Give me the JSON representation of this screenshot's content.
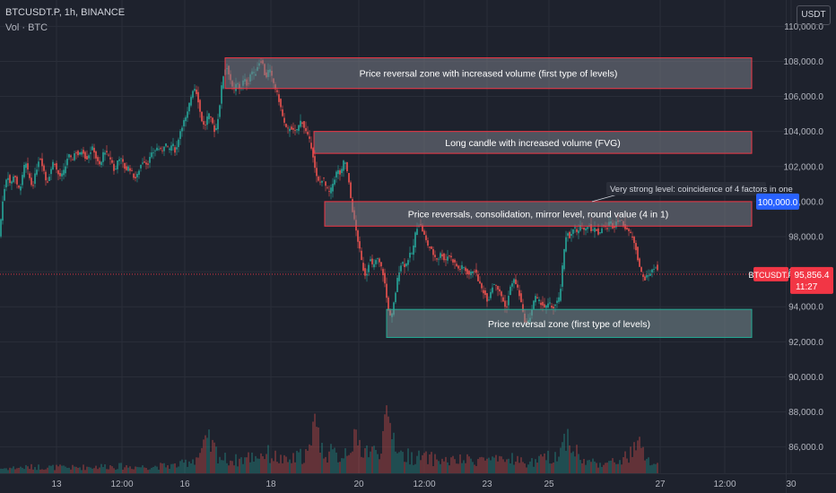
{
  "header": {
    "symbol_line": "BTCUSDT.P, 1h, BINANCE",
    "volume_line": "Vol · BTC",
    "currency": "USDT"
  },
  "colors": {
    "background": "#1e222d",
    "up": "#26a69a",
    "down": "#ef5350",
    "zone_fill": "rgba(120,123,134,0.55)",
    "zone_border": "#f23645",
    "green_zone_border": "#22ab94",
    "axis_text": "#b2b5be",
    "grid": "#2a2e39",
    "price_label": "#f23645",
    "level_label": "#2962ff"
  },
  "chart_data": {
    "type": "candlestick",
    "symbol": "BTCUSDT.P",
    "timeframe": "1h",
    "exchange": "BINANCE",
    "ylim": [
      84500,
      111500
    ],
    "yticks": [
      "110,000.0",
      "108,000.0",
      "106,000.0",
      "104,000.0",
      "102,000.0",
      "100,000.0",
      "98,000.0",
      "96,000.0",
      "94,000.0",
      "92,000.0",
      "90,000.0",
      "88,000.0",
      "86,000.0"
    ],
    "ytick_values": [
      110000,
      108000,
      106000,
      104000,
      102000,
      100000,
      98000,
      96000,
      94000,
      92000,
      90000,
      88000,
      86000
    ],
    "xticks": [
      "13",
      "12:00",
      "16",
      "18",
      "20",
      "12:00",
      "23",
      "25",
      "27",
      "12:00",
      "30"
    ],
    "price_path": [
      [
        0,
        98500
      ],
      [
        4,
        100500
      ],
      [
        8,
        101600
      ],
      [
        12,
        100900
      ],
      [
        16,
        101700
      ],
      [
        20,
        100600
      ],
      [
        24,
        101100
      ],
      [
        28,
        102300
      ],
      [
        32,
        101500
      ],
      [
        36,
        100800
      ],
      [
        40,
        101700
      ],
      [
        44,
        102600
      ],
      [
        48,
        102000
      ],
      [
        52,
        101000
      ],
      [
        56,
        101700
      ],
      [
        60,
        102400
      ],
      [
        64,
        101600
      ],
      [
        68,
        101400
      ],
      [
        72,
        101800
      ],
      [
        76,
        102700
      ],
      [
        80,
        102300
      ],
      [
        84,
        102900
      ],
      [
        88,
        102600
      ],
      [
        92,
        103000
      ],
      [
        96,
        102400
      ],
      [
        100,
        102800
      ],
      [
        104,
        103100
      ],
      [
        108,
        102300
      ],
      [
        112,
        102000
      ],
      [
        116,
        103000
      ],
      [
        120,
        102600
      ],
      [
        124,
        102400
      ],
      [
        128,
        101600
      ],
      [
        132,
        102600
      ],
      [
        136,
        102300
      ],
      [
        140,
        101800
      ],
      [
        144,
        102000
      ],
      [
        148,
        101500
      ],
      [
        152,
        101300
      ],
      [
        156,
        102000
      ],
      [
        160,
        102400
      ],
      [
        164,
        102100
      ],
      [
        168,
        102600
      ],
      [
        172,
        102900
      ],
      [
        176,
        103100
      ],
      [
        180,
        102800
      ],
      [
        184,
        103400
      ],
      [
        188,
        102900
      ],
      [
        192,
        103300
      ],
      [
        196,
        102800
      ],
      [
        200,
        103900
      ],
      [
        204,
        104500
      ],
      [
        208,
        104800
      ],
      [
        212,
        105800
      ],
      [
        216,
        106600
      ],
      [
        220,
        106100
      ],
      [
        224,
        104800
      ],
      [
        228,
        104200
      ],
      [
        232,
        105000
      ],
      [
        236,
        104600
      ],
      [
        240,
        103900
      ],
      [
        244,
        105100
      ],
      [
        248,
        107000
      ],
      [
        252,
        107800
      ],
      [
        256,
        107200
      ],
      [
        260,
        106200
      ],
      [
        264,
        106800
      ],
      [
        268,
        106400
      ],
      [
        272,
        107000
      ],
      [
        276,
        106600
      ],
      [
        280,
        107500
      ],
      [
        284,
        107200
      ],
      [
        288,
        107900
      ],
      [
        292,
        108100
      ],
      [
        296,
        107000
      ],
      [
        300,
        107600
      ],
      [
        304,
        106900
      ],
      [
        308,
        106300
      ],
      [
        312,
        105600
      ],
      [
        316,
        104600
      ],
      [
        320,
        104000
      ],
      [
        324,
        104300
      ],
      [
        328,
        103900
      ],
      [
        332,
        104200
      ],
      [
        336,
        104700
      ],
      [
        340,
        104100
      ],
      [
        344,
        103600
      ],
      [
        348,
        103000
      ],
      [
        352,
        101500
      ],
      [
        356,
        101000
      ],
      [
        360,
        101400
      ],
      [
        364,
        100700
      ],
      [
        368,
        100500
      ],
      [
        372,
        101200
      ],
      [
        376,
        101800
      ],
      [
        380,
        101500
      ],
      [
        384,
        102500
      ],
      [
        388,
        101400
      ],
      [
        392,
        99800
      ],
      [
        396,
        98600
      ],
      [
        400,
        97500
      ],
      [
        404,
        96300
      ],
      [
        408,
        95700
      ],
      [
        412,
        96800
      ],
      [
        416,
        96200
      ],
      [
        420,
        96800
      ],
      [
        424,
        96400
      ],
      [
        428,
        95700
      ],
      [
        432,
        94100
      ],
      [
        436,
        93200
      ],
      [
        440,
        94500
      ],
      [
        444,
        95900
      ],
      [
        448,
        96600
      ],
      [
        452,
        96300
      ],
      [
        456,
        96900
      ],
      [
        460,
        97100
      ],
      [
        464,
        98500
      ],
      [
        468,
        98800
      ],
      [
        472,
        98200
      ],
      [
        476,
        97600
      ],
      [
        480,
        97300
      ],
      [
        484,
        96900
      ],
      [
        488,
        96700
      ],
      [
        492,
        97100
      ],
      [
        496,
        96600
      ],
      [
        500,
        97000
      ],
      [
        504,
        96700
      ],
      [
        508,
        96400
      ],
      [
        512,
        96100
      ],
      [
        516,
        96300
      ],
      [
        520,
        96000
      ],
      [
        524,
        95800
      ],
      [
        528,
        96200
      ],
      [
        532,
        95700
      ],
      [
        536,
        95100
      ],
      [
        540,
        94800
      ],
      [
        544,
        94300
      ],
      [
        548,
        95100
      ],
      [
        552,
        95400
      ],
      [
        556,
        94900
      ],
      [
        560,
        94500
      ],
      [
        564,
        93800
      ],
      [
        568,
        94900
      ],
      [
        572,
        95600
      ],
      [
        576,
        95200
      ],
      [
        580,
        94500
      ],
      [
        584,
        93300
      ],
      [
        588,
        93000
      ],
      [
        592,
        93600
      ],
      [
        596,
        94600
      ],
      [
        600,
        94300
      ],
      [
        604,
        94200
      ],
      [
        608,
        93900
      ],
      [
        612,
        94200
      ],
      [
        616,
        93900
      ],
      [
        620,
        94200
      ],
      [
        624,
        94500
      ],
      [
        628,
        96800
      ],
      [
        632,
        98400
      ],
      [
        636,
        97900
      ],
      [
        640,
        98600
      ],
      [
        644,
        98100
      ],
      [
        648,
        98700
      ],
      [
        652,
        98300
      ],
      [
        656,
        98800
      ],
      [
        660,
        98300
      ],
      [
        664,
        98500
      ],
      [
        668,
        98100
      ],
      [
        672,
        98700
      ],
      [
        676,
        98400
      ],
      [
        680,
        98900
      ],
      [
        684,
        98500
      ],
      [
        688,
        99000
      ],
      [
        692,
        98900
      ],
      [
        696,
        98600
      ],
      [
        700,
        98400
      ],
      [
        704,
        98000
      ],
      [
        708,
        97600
      ],
      [
        712,
        96500
      ],
      [
        716,
        95700
      ],
      [
        720,
        95600
      ],
      [
        724,
        95900
      ],
      [
        728,
        96100
      ],
      [
        732,
        96400
      ],
      [
        734,
        95900
      ]
    ],
    "volume_path": [
      [
        0,
        6
      ],
      [
        40,
        8
      ],
      [
        80,
        7
      ],
      [
        120,
        9
      ],
      [
        160,
        8
      ],
      [
        200,
        10
      ],
      [
        220,
        20
      ],
      [
        232,
        38
      ],
      [
        248,
        18
      ],
      [
        264,
        16
      ],
      [
        296,
        25
      ],
      [
        320,
        14
      ],
      [
        348,
        28
      ],
      [
        352,
        120
      ],
      [
        356,
        30
      ],
      [
        380,
        20
      ],
      [
        392,
        40
      ],
      [
        400,
        35
      ],
      [
        408,
        30
      ],
      [
        420,
        25
      ],
      [
        432,
        60
      ],
      [
        436,
        55
      ],
      [
        448,
        22
      ],
      [
        480,
        18
      ],
      [
        500,
        15
      ],
      [
        520,
        16
      ],
      [
        540,
        18
      ],
      [
        560,
        14
      ],
      [
        572,
        20
      ],
      [
        584,
        12
      ],
      [
        600,
        15
      ],
      [
        624,
        25
      ],
      [
        632,
        50
      ],
      [
        648,
        15
      ],
      [
        680,
        12
      ],
      [
        700,
        20
      ],
      [
        712,
        35
      ],
      [
        720,
        18
      ],
      [
        734,
        8
      ]
    ],
    "volume_ylim": [
      0,
      165
    ],
    "zones": [
      {
        "label": "Price reversal zone with increased volume (first type of levels)",
        "top": 108200,
        "bottom": 106450,
        "x_start": 251,
        "x_end": 838,
        "style": "red"
      },
      {
        "label": "Long candle with increased volume (FVG)",
        "top": 104000,
        "bottom": 102750,
        "x_start": 350,
        "x_end": 838,
        "style": "red"
      },
      {
        "label": "Price reversals, consolidation, mirror level, round value (4 in 1)",
        "top": 100000,
        "bottom": 98600,
        "x_start": 362,
        "x_end": 838,
        "style": "red"
      },
      {
        "label": "Price reversal zone (first type of levels)",
        "top": 93850,
        "bottom": 92250,
        "x_start": 431,
        "x_end": 838,
        "style": "green"
      }
    ],
    "annotation": {
      "text": "Very strong level: coincidence of 4 factors in one",
      "target_x": 660,
      "target_price": 100000
    },
    "level_label": {
      "text": "100,000.0",
      "price": 100000
    },
    "current_price": {
      "text": "95,856.4",
      "price": 95856.4,
      "symbol": "BTCUSDT.P",
      "countdown": "11:27"
    }
  }
}
